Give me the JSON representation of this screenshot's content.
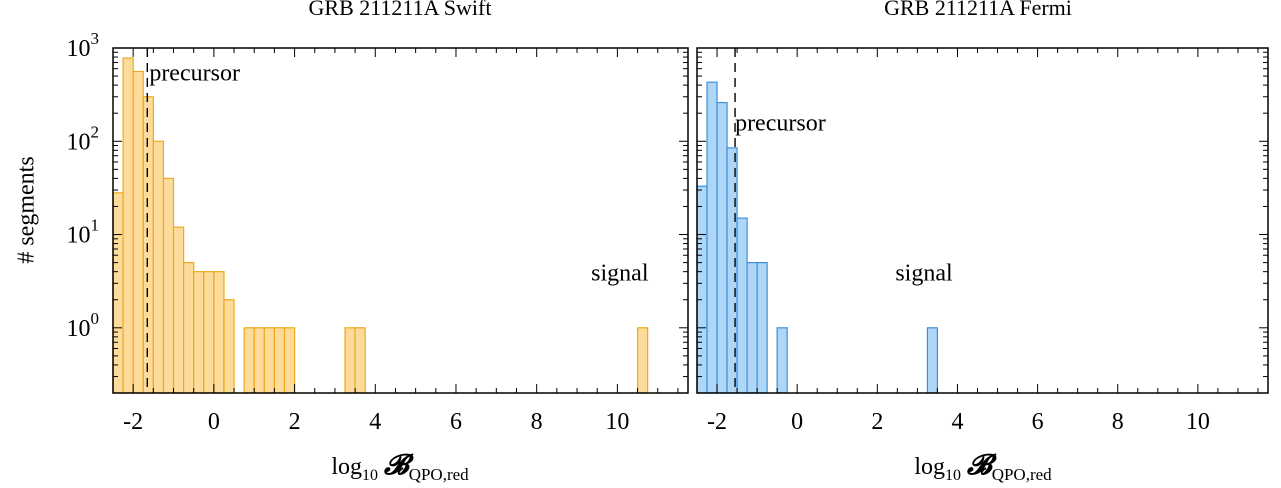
{
  "figure": {
    "ylabel": "# segments",
    "xlabel_prefix": "log",
    "xlabel_base": "10",
    "xlabel_symbol": "𝓑",
    "xlabel_subscript": "QPO,red"
  },
  "chart_data": [
    {
      "type": "bar",
      "title": "GRB 211211A Swift",
      "bin_width": 0.25,
      "xlim": [
        -2.5,
        11.75
      ],
      "ylim": [
        0.2,
        1000
      ],
      "yscale": "log",
      "xticks": [
        -2,
        0,
        2,
        4,
        6,
        8,
        10
      ],
      "yticks": [
        {
          "value": 1,
          "base": "10",
          "exp": "0"
        },
        {
          "value": 10,
          "base": "10",
          "exp": "1"
        },
        {
          "value": 100,
          "base": "10",
          "exp": "2"
        },
        {
          "value": 1000,
          "base": "10",
          "exp": "3"
        }
      ],
      "fill_color": "#fddc9b",
      "edge_color": "#f0a81c",
      "precursor_x": -1.65,
      "bins": [
        {
          "x": -2.5,
          "count": 28
        },
        {
          "x": -2.25,
          "count": 780
        },
        {
          "x": -2.0,
          "count": 560
        },
        {
          "x": -1.75,
          "count": 300
        },
        {
          "x": -1.5,
          "count": 100
        },
        {
          "x": -1.25,
          "count": 40
        },
        {
          "x": -1.0,
          "count": 12
        },
        {
          "x": -0.75,
          "count": 5
        },
        {
          "x": -0.5,
          "count": 4
        },
        {
          "x": -0.25,
          "count": 4
        },
        {
          "x": 0.0,
          "count": 4
        },
        {
          "x": 0.25,
          "count": 2
        },
        {
          "x": 0.75,
          "count": 1
        },
        {
          "x": 1.0,
          "count": 1
        },
        {
          "x": 1.25,
          "count": 1
        },
        {
          "x": 1.5,
          "count": 1
        },
        {
          "x": 1.75,
          "count": 1
        },
        {
          "x": 3.25,
          "count": 1
        },
        {
          "x": 3.5,
          "count": 1
        },
        {
          "x": 10.5,
          "count": 1
        }
      ],
      "annotations": [
        {
          "text": "precursor",
          "x": -1.6,
          "y": 450
        },
        {
          "text": "signal",
          "x": 9.35,
          "y": 3.2
        }
      ]
    },
    {
      "type": "bar",
      "title": "GRB 211211A Fermi",
      "bin_width": 0.25,
      "xlim": [
        -2.5,
        11.75
      ],
      "ylim": [
        0.2,
        1000
      ],
      "yscale": "log",
      "xticks": [
        -2,
        0,
        2,
        4,
        6,
        8,
        10
      ],
      "yticks": [
        {
          "value": 1,
          "base": "10",
          "exp": "0"
        },
        {
          "value": 10,
          "base": "10",
          "exp": "1"
        },
        {
          "value": 100,
          "base": "10",
          "exp": "2"
        },
        {
          "value": 1000,
          "base": "10",
          "exp": "3"
        }
      ],
      "fill_color": "#aed6f7",
      "edge_color": "#3d8fd8",
      "precursor_x": -1.55,
      "bins": [
        {
          "x": -2.5,
          "count": 33
        },
        {
          "x": -2.25,
          "count": 430
        },
        {
          "x": -2.0,
          "count": 260
        },
        {
          "x": -1.75,
          "count": 85
        },
        {
          "x": -1.5,
          "count": 15
        },
        {
          "x": -1.25,
          "count": 5
        },
        {
          "x": -1.0,
          "count": 5
        },
        {
          "x": -0.5,
          "count": 1
        },
        {
          "x": 3.25,
          "count": 1
        }
      ],
      "annotations": [
        {
          "text": "precursor",
          "x": -1.55,
          "y": 130
        },
        {
          "text": "signal",
          "x": 2.45,
          "y": 3.2
        }
      ]
    }
  ]
}
